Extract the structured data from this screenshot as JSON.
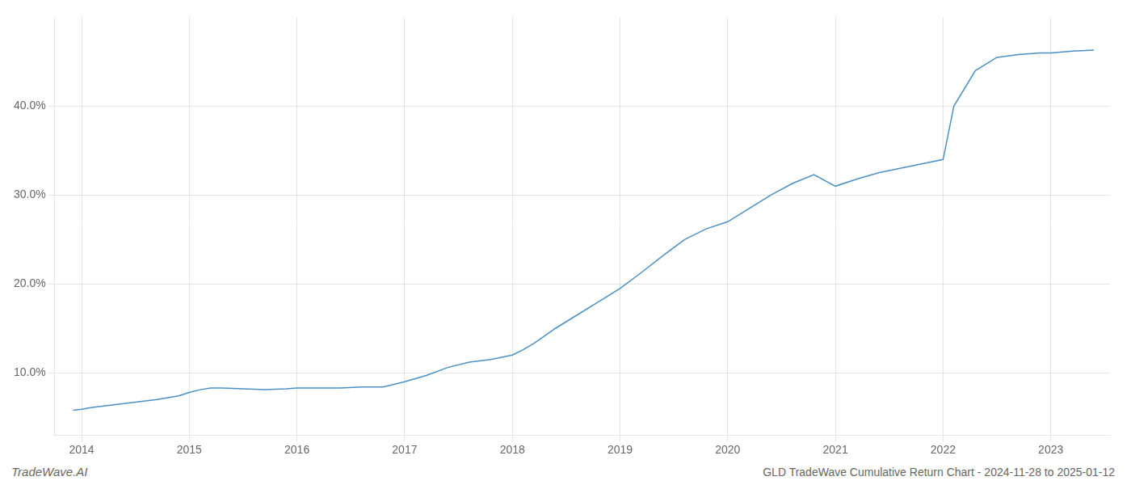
{
  "chart_data": {
    "type": "line",
    "title": "GLD TradeWave Cumulative Return Chart - 2024-11-28 to 2025-01-12",
    "annotations": [
      "TradeWave.AI"
    ],
    "x": [
      2013.92,
      2014.0,
      2014.1,
      2014.3,
      2014.5,
      2014.7,
      2014.9,
      2015.0,
      2015.1,
      2015.2,
      2015.3,
      2015.5,
      2015.7,
      2015.9,
      2016.0,
      2016.2,
      2016.4,
      2016.6,
      2016.8,
      2017.0,
      2017.2,
      2017.4,
      2017.6,
      2017.8,
      2018.0,
      2018.1,
      2018.2,
      2018.4,
      2018.6,
      2018.8,
      2019.0,
      2019.2,
      2019.4,
      2019.6,
      2019.8,
      2020.0,
      2020.2,
      2020.4,
      2020.6,
      2020.8,
      2021.0,
      2021.2,
      2021.4,
      2021.6,
      2021.8,
      2022.0,
      2022.05,
      2022.1,
      2022.3,
      2022.5,
      2022.7,
      2022.9,
      2023.0,
      2023.2,
      2023.4
    ],
    "values": [
      0.058,
      0.059,
      0.061,
      0.064,
      0.067,
      0.07,
      0.074,
      0.078,
      0.081,
      0.083,
      0.083,
      0.082,
      0.081,
      0.082,
      0.083,
      0.083,
      0.083,
      0.084,
      0.084,
      0.09,
      0.097,
      0.106,
      0.112,
      0.115,
      0.12,
      0.126,
      0.133,
      0.15,
      0.165,
      0.18,
      0.195,
      0.213,
      0.232,
      0.25,
      0.262,
      0.27,
      0.285,
      0.3,
      0.313,
      0.323,
      0.31,
      0.318,
      0.325,
      0.33,
      0.335,
      0.34,
      0.37,
      0.4,
      0.44,
      0.455,
      0.458,
      0.46,
      0.46,
      0.462,
      0.463
    ],
    "color": "#4a90c4",
    "marker": "none",
    "xlim": [
      2013.75,
      2023.55
    ],
    "xticks": [
      2014,
      2015,
      2016,
      2017,
      2018,
      2019,
      2020,
      2021,
      2022,
      2023
    ],
    "ylim": [
      0.03,
      0.5
    ],
    "yticks": [
      {
        "value": 0.1,
        "label": "10.0%"
      },
      {
        "value": 0.2,
        "label": "20.0%"
      },
      {
        "value": 0.3,
        "label": "30.0%"
      },
      {
        "value": 0.4,
        "label": "40.0%"
      }
    ],
    "grid": true
  }
}
